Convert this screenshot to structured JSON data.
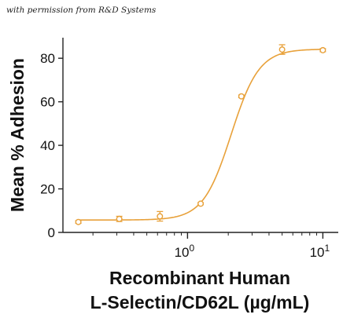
{
  "credit_text": "with permission from R&D Systems",
  "colors": {
    "series": "#E8A13A",
    "axis": "#222222",
    "text": "#111111"
  },
  "chart_data": {
    "type": "scatter",
    "ylabel": "Mean % Adhesion",
    "xlabel_lines": [
      "Recombinant Human",
      "L-Selectin/CD62L (µg/mL)"
    ],
    "x_scale": "log",
    "xlim": [
      0.12,
      13
    ],
    "ylim": [
      0,
      88
    ],
    "y_ticks": [
      0,
      20,
      40,
      60,
      80
    ],
    "x_ticks": [
      {
        "value": 1,
        "base": "10",
        "exp": "0"
      },
      {
        "value": 10,
        "base": "10",
        "exp": "1"
      }
    ],
    "grid": false,
    "legend": "none",
    "series": [
      {
        "points": [
          {
            "x": 0.156,
            "y": 4.8,
            "err": 0.6
          },
          {
            "x": 0.313,
            "y": 6.2,
            "err": 1.2
          },
          {
            "x": 0.625,
            "y": 7.4,
            "err": 2.2
          },
          {
            "x": 1.25,
            "y": 13.2,
            "err": 0.5
          },
          {
            "x": 2.5,
            "y": 62.5,
            "err": 0.6
          },
          {
            "x": 5.0,
            "y": 84.0,
            "err": 2.2
          },
          {
            "x": 10.0,
            "y": 83.7,
            "err": 0.7
          }
        ],
        "fit": {
          "bottom": 5.7,
          "top": 84.2,
          "ec50": 2.1,
          "hill": 4.2
        }
      }
    ]
  }
}
